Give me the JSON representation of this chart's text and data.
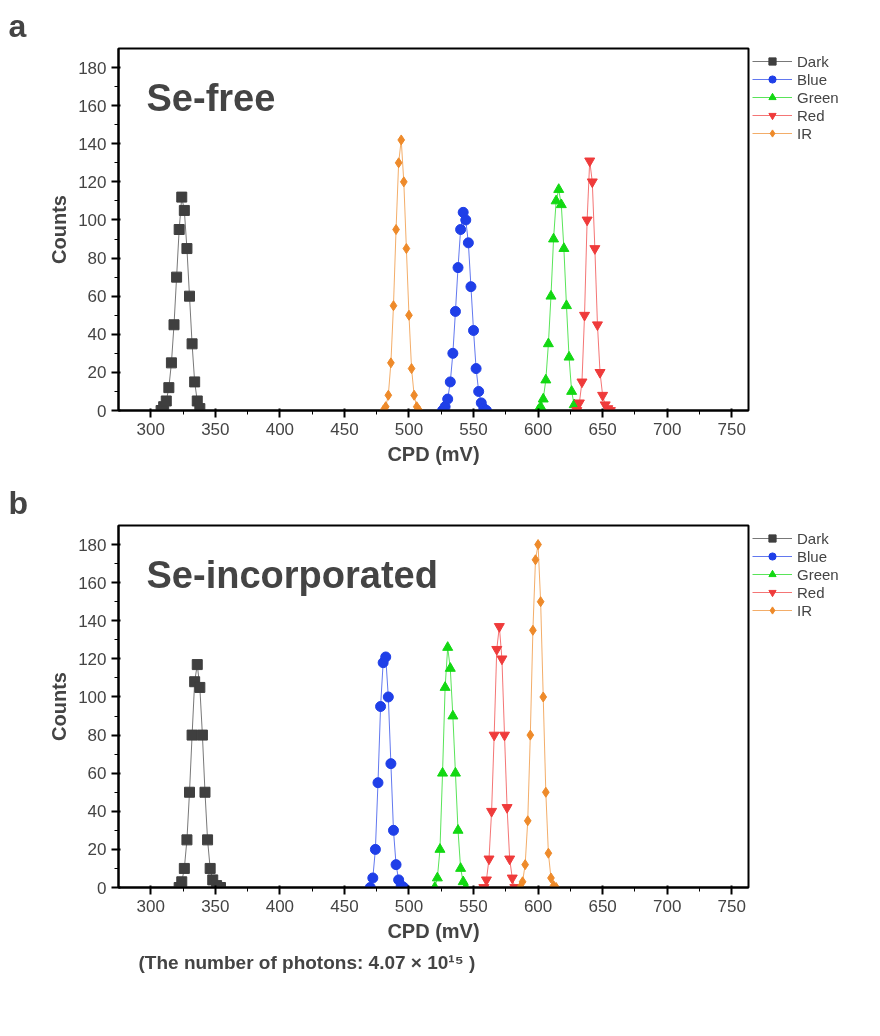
{
  "chart_data": [
    {
      "type": "line",
      "title": "a",
      "subtitle": "Se-free",
      "xlabel": "CPD (mV)",
      "ylabel": "Counts",
      "xlim": [
        275,
        763
      ],
      "ylim": [
        0,
        190
      ],
      "xticks": [
        300,
        350,
        400,
        450,
        500,
        550,
        600,
        650,
        700,
        750
      ],
      "yticks": [
        0,
        20,
        40,
        60,
        80,
        100,
        120,
        140,
        160,
        180
      ],
      "legend": "top right",
      "grid": false,
      "series": [
        {
          "name": "Dark",
          "color": "#3f3f3f",
          "marker": "square",
          "x": [
            308,
            310,
            312,
            314,
            316,
            318,
            320,
            322,
            324,
            326,
            328,
            330,
            332,
            334,
            336,
            338
          ],
          "values": [
            0,
            2,
            5,
            12,
            25,
            45,
            70,
            95,
            112,
            105,
            85,
            60,
            35,
            15,
            5,
            1
          ]
        },
        {
          "name": "Blue",
          "color": "#1f3fe8",
          "marker": "circle",
          "x": [
            526,
            528,
            530,
            532,
            534,
            536,
            538,
            540,
            542,
            544,
            546,
            548,
            550,
            552,
            554,
            556,
            558,
            560
          ],
          "values": [
            0,
            2,
            6,
            15,
            30,
            52,
            75,
            95,
            104,
            100,
            88,
            65,
            42,
            22,
            10,
            4,
            1,
            0
          ]
        },
        {
          "name": "Green",
          "color": "#12d812",
          "marker": "triangle",
          "x": [
            600,
            602,
            604,
            606,
            608,
            610,
            612,
            614,
            616,
            618,
            620,
            622,
            624,
            626,
            628,
            630
          ],
          "values": [
            0,
            2,
            6,
            16,
            35,
            60,
            90,
            110,
            116,
            108,
            85,
            55,
            28,
            10,
            3,
            0
          ]
        },
        {
          "name": "Red",
          "color": "#ef3b3b",
          "marker": "triangle_down",
          "x": [
            630,
            632,
            634,
            636,
            638,
            640,
            642,
            644,
            646,
            648,
            650,
            652,
            654,
            656
          ],
          "values": [
            0,
            4,
            15,
            50,
            100,
            131,
            120,
            85,
            45,
            20,
            8,
            3,
            1,
            0
          ]
        },
        {
          "name": "IR",
          "color": "#ee8a2a",
          "marker": "diamond",
          "x": [
            480,
            482,
            484,
            486,
            488,
            490,
            492,
            494,
            496,
            498,
            500,
            502,
            504,
            506,
            508
          ],
          "values": [
            0,
            2,
            8,
            25,
            55,
            95,
            130,
            142,
            120,
            85,
            50,
            22,
            8,
            2,
            0
          ]
        }
      ]
    },
    {
      "type": "line",
      "title": "b",
      "subtitle": "Se-incorporated",
      "xlabel": "CPD (mV)",
      "ylabel": "Counts",
      "xlim": [
        275,
        763
      ],
      "ylim": [
        0,
        190
      ],
      "xticks": [
        300,
        350,
        400,
        450,
        500,
        550,
        600,
        650,
        700,
        750
      ],
      "yticks": [
        0,
        20,
        40,
        60,
        80,
        100,
        120,
        140,
        160,
        180
      ],
      "legend": "top right",
      "grid": false,
      "annotations": [
        "(The number of photons: 4.07 × 10¹⁵ )"
      ],
      "series": [
        {
          "name": "Dark",
          "color": "#3f3f3f",
          "marker": "square",
          "x": [
            322,
            324,
            326,
            328,
            330,
            332,
            334,
            336,
            338,
            340,
            342,
            344,
            346,
            348,
            351,
            354
          ],
          "values": [
            0,
            3,
            10,
            25,
            50,
            80,
            108,
            117,
            105,
            80,
            50,
            25,
            10,
            4,
            1,
            0
          ]
        },
        {
          "name": "Blue",
          "color": "#1f3fe8",
          "marker": "circle",
          "x": [
            470,
            472,
            474,
            476,
            478,
            480,
            482,
            484,
            486,
            488,
            490,
            492,
            494,
            496
          ],
          "values": [
            0,
            5,
            20,
            55,
            95,
            118,
            121,
            100,
            65,
            30,
            12,
            4,
            1,
            0
          ]
        },
        {
          "name": "Green",
          "color": "#12d812",
          "marker": "triangle",
          "x": [
            520,
            522,
            524,
            526,
            528,
            530,
            532,
            534,
            536,
            538,
            540,
            542,
            544
          ],
          "values": [
            0,
            5,
            20,
            60,
            105,
            126,
            115,
            90,
            60,
            30,
            10,
            3,
            0
          ]
        },
        {
          "name": "Red",
          "color": "#ef3b3b",
          "marker": "triangle_down",
          "x": [
            558,
            560,
            562,
            564,
            566,
            568,
            570,
            572,
            574,
            576,
            578,
            580,
            582
          ],
          "values": [
            0,
            4,
            15,
            40,
            80,
            125,
            137,
            120,
            80,
            42,
            15,
            5,
            0
          ]
        },
        {
          "name": "IR",
          "color": "#ee8a2a",
          "marker": "diamond",
          "x": [
            586,
            588,
            590,
            592,
            594,
            596,
            598,
            600,
            602,
            604,
            606,
            608,
            610,
            612,
            614
          ],
          "values": [
            0,
            3,
            12,
            35,
            80,
            135,
            172,
            180,
            150,
            100,
            50,
            18,
            5,
            1,
            0
          ]
        }
      ]
    }
  ]
}
